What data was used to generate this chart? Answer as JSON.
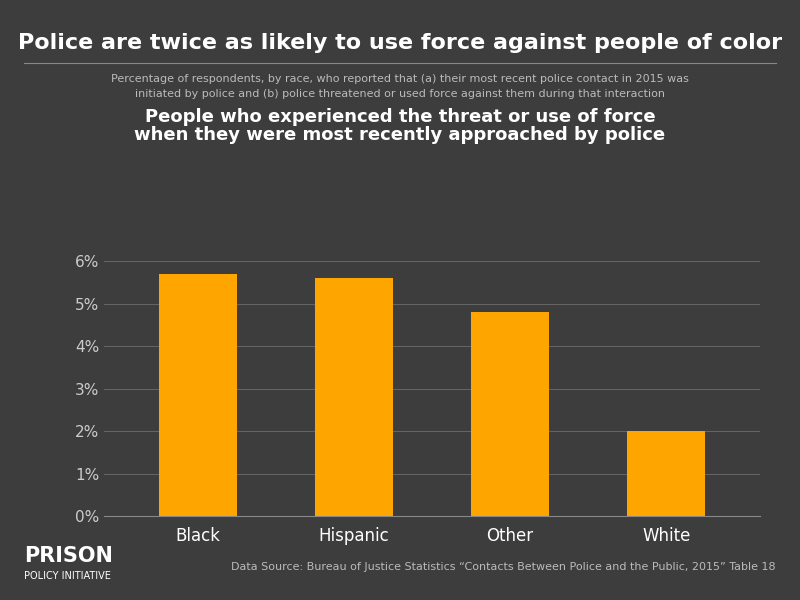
{
  "title": "Police are twice as likely to use force against people of color",
  "subtitle_line1": "Percentage of respondents, by race, who reported that (a) their most recent police contact in 2015 was",
  "subtitle_line2": "initiated by police and (b) police threatened or used force against them during that interaction",
  "chart_title_line1": "People who experienced the threat or use of force",
  "chart_title_line2": "when they were most recently approached by police",
  "categories": [
    "Black",
    "Hispanic",
    "Other",
    "White"
  ],
  "values": [
    5.7,
    5.6,
    4.8,
    2.0
  ],
  "bar_color": "#FFA500",
  "background_color": "#3d3d3d",
  "text_color": "#ffffff",
  "grid_color": "#666666",
  "axis_label_color": "#cccccc",
  "source_text": "Data Source: Bureau of Justice Statistics “Contacts Between Police and the Public, 2015” Table 18",
  "logo_text_top": "PRISON",
  "logo_text_bottom": "POLICY INITIATIVE",
  "ylim": [
    0,
    6.5
  ],
  "yticks": [
    0,
    1,
    2,
    3,
    4,
    5,
    6
  ],
  "ytick_labels": [
    "0%",
    "1%",
    "2%",
    "3%",
    "4%",
    "5%",
    "6%"
  ]
}
